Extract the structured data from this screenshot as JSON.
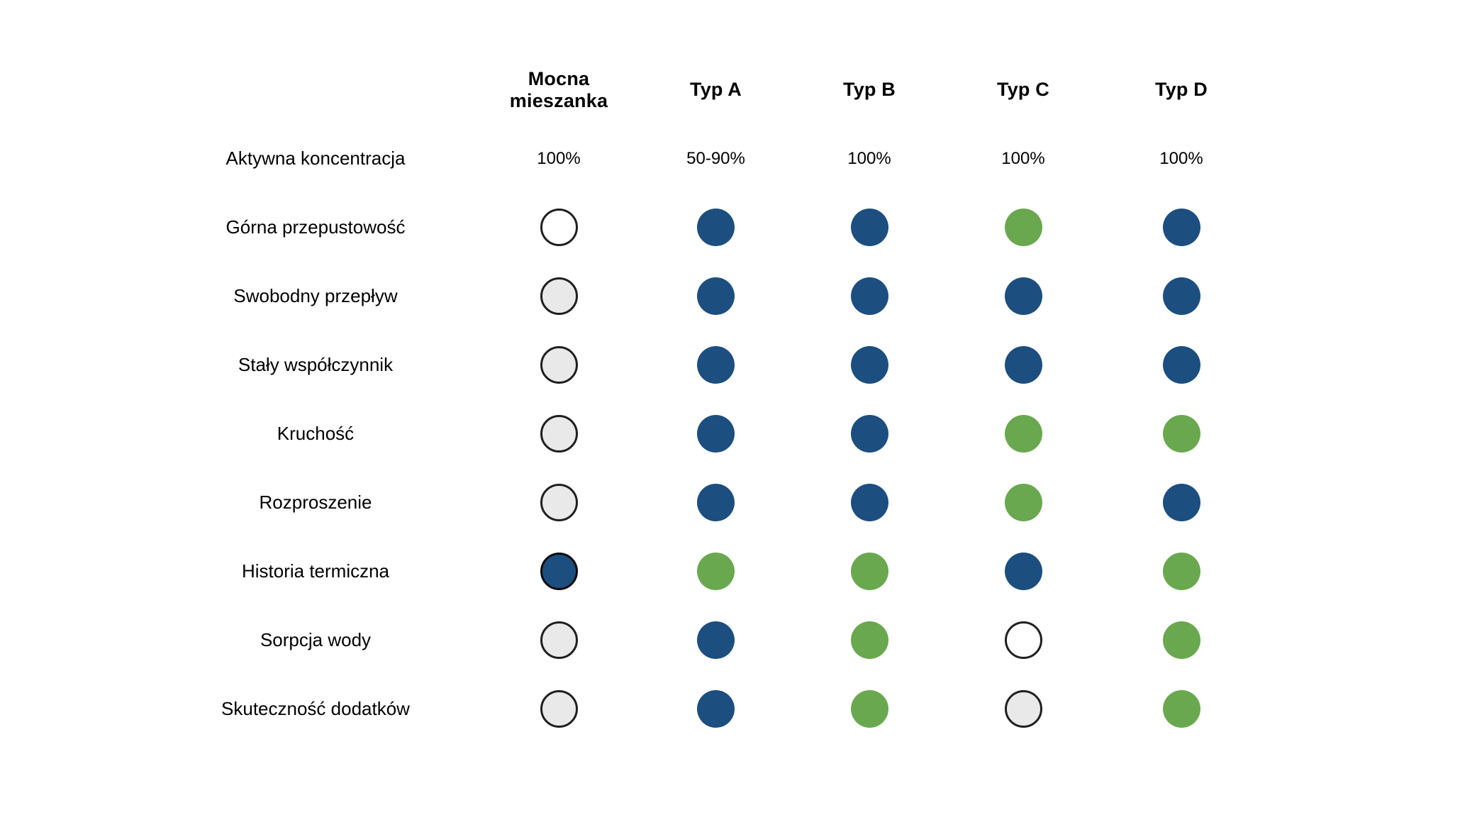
{
  "palette": {
    "blue": "#1C4E80",
    "green": "#6AA84F",
    "gray": "#E9E9E9",
    "white": "#FFFFFF",
    "outline": "#1F1F1F",
    "text": "#000000",
    "background": "#FFFFFF"
  },
  "chart_data": {
    "type": "table",
    "columns": [
      "Mocna mieszanka",
      "Typ A",
      "Typ B",
      "Typ C",
      "Typ D"
    ],
    "dot_values_key": [
      "white",
      "gray",
      "blue",
      "green",
      "blue-outlined"
    ],
    "rows": [
      {
        "label": "Aktywna koncentracja",
        "kind": "text",
        "values": [
          "100%",
          "50-90%",
          "100%",
          "100%",
          "100%"
        ]
      },
      {
        "label": "Górna przepustowość",
        "kind": "dots",
        "values": [
          "white",
          "blue",
          "blue",
          "green",
          "blue"
        ]
      },
      {
        "label": "Swobodny przepływ",
        "kind": "dots",
        "values": [
          "gray",
          "blue",
          "blue",
          "blue",
          "blue"
        ]
      },
      {
        "label": "Stały współczynnik",
        "kind": "dots",
        "values": [
          "gray",
          "blue",
          "blue",
          "blue",
          "blue"
        ]
      },
      {
        "label": "Kruchość",
        "kind": "dots",
        "values": [
          "gray",
          "blue",
          "blue",
          "green",
          "green"
        ]
      },
      {
        "label": "Rozproszenie",
        "kind": "dots",
        "values": [
          "gray",
          "blue",
          "blue",
          "green",
          "blue"
        ]
      },
      {
        "label": "Historia termiczna",
        "kind": "dots",
        "values": [
          "blue-outlined",
          "green",
          "green",
          "blue",
          "green"
        ]
      },
      {
        "label": "Sorpcja wody",
        "kind": "dots",
        "values": [
          "gray",
          "blue",
          "green",
          "white",
          "green"
        ]
      },
      {
        "label": "Skuteczność dodatków",
        "kind": "dots",
        "values": [
          "gray",
          "blue",
          "green",
          "gray",
          "green"
        ]
      }
    ]
  }
}
